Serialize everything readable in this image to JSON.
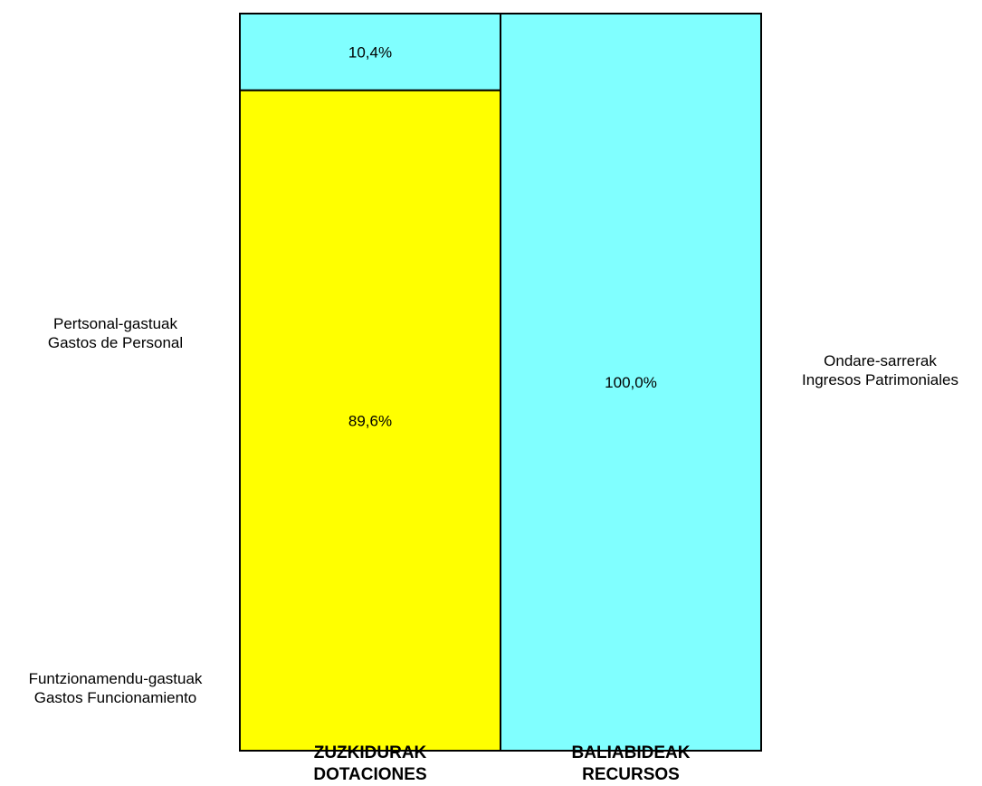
{
  "chart_data": {
    "type": "bar",
    "stacked": true,
    "percent_stacked": true,
    "categories": [
      "ZUZKIDURAK\nDOTACIONES",
      "BALIABIDEAK\nRECURSOS"
    ],
    "category_labels": [
      {
        "line1": "ZUZKIDURAK",
        "line2": "DOTACIONES"
      },
      {
        "line1": "BALIABIDEAK",
        "line2": "RECURSOS"
      }
    ],
    "series": [
      {
        "label_line1": "Pertsonal-gastuak",
        "label_line2": "Gastos de Personal",
        "values": [
          89.6,
          0
        ],
        "value_labels": [
          "89,6%",
          ""
        ],
        "color": "#FFFF00"
      },
      {
        "label_line1": "Funtzionamendu-gastuak",
        "label_line2": "Gastos Funcionamiento",
        "values": [
          10.4,
          0
        ],
        "value_labels": [
          "10,4%",
          ""
        ],
        "color": "#80FFFF"
      },
      {
        "label_line1": "Ondare-sarrerak",
        "label_line2": "Ingresos Patrimoniales",
        "values": [
          0,
          100.0
        ],
        "value_labels": [
          "",
          "100,0%"
        ],
        "color": "#80FFFF"
      }
    ],
    "ylim": [
      0,
      100
    ],
    "grid": false,
    "legend": "none",
    "title": "",
    "xlabel": "",
    "ylabel": ""
  }
}
